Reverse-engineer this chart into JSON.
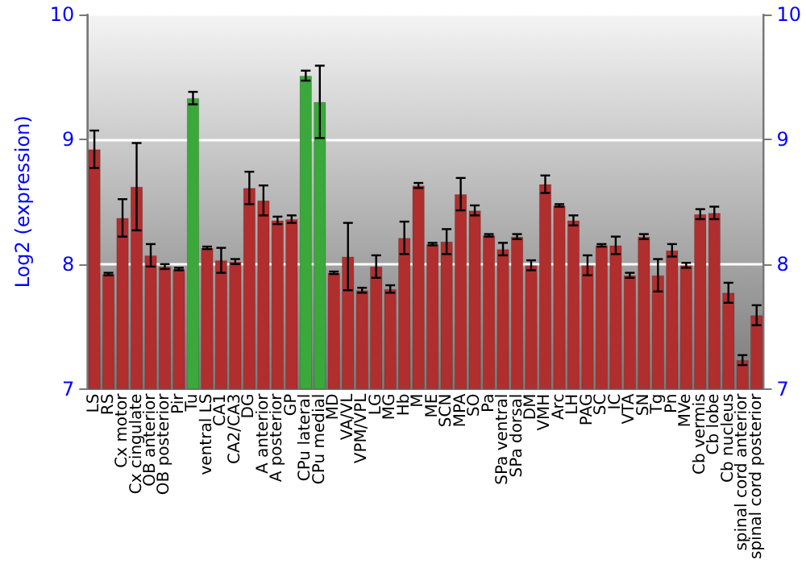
{
  "chart_data": {
    "type": "bar",
    "ylabel": "Log2 (expression)",
    "categories": [
      "LS",
      "RS",
      "Cx motor",
      "Cx cingulate",
      "OB anterior",
      "OB posterior",
      "Pir",
      "Tu",
      "ventral LS",
      "CA1",
      "CA2/CA3",
      "DG",
      "A anterior",
      "A posterior",
      "GP",
      "CPu lateral",
      "CPu medial",
      "MD",
      "VA/VL",
      "VPM/VPL",
      "LG",
      "MG",
      "Hb",
      "M",
      "ME",
      "SCN",
      "MPA",
      "SO",
      "Pa",
      "SPa ventral",
      "SPa dorsal",
      "DM",
      "VMH",
      "Arc",
      "LH",
      "PAG",
      "SC",
      "IC",
      "VTA",
      "SN",
      "Tg",
      "Pn",
      "MVe",
      "Cb vermis",
      "Cb lobe",
      "Cb nucleus",
      "spinal cord anterior",
      "spinal cord posterior"
    ],
    "values": [
      8.92,
      7.92,
      8.37,
      8.62,
      8.07,
      7.98,
      7.96,
      9.33,
      8.13,
      8.03,
      8.02,
      8.61,
      8.51,
      8.35,
      8.36,
      9.51,
      9.3,
      7.93,
      8.06,
      7.79,
      7.98,
      7.8,
      8.21,
      8.63,
      8.16,
      8.18,
      8.56,
      8.43,
      8.23,
      8.12,
      8.22,
      7.99,
      8.64,
      8.47,
      8.35,
      7.99,
      8.15,
      8.15,
      7.91,
      8.22,
      7.91,
      8.11,
      7.99,
      8.4,
      8.41,
      7.77,
      7.23,
      7.59
    ],
    "errors": [
      0.15,
      0.01,
      0.15,
      0.35,
      0.09,
      0.02,
      0.01,
      0.05,
      0.01,
      0.1,
      0.02,
      0.13,
      0.12,
      0.03,
      0.03,
      0.04,
      0.29,
      0.01,
      0.27,
      0.02,
      0.09,
      0.03,
      0.13,
      0.02,
      0.01,
      0.1,
      0.13,
      0.04,
      0.01,
      0.05,
      0.02,
      0.04,
      0.07,
      0.01,
      0.04,
      0.08,
      0.01,
      0.07,
      0.02,
      0.02,
      0.13,
      0.05,
      0.02,
      0.04,
      0.05,
      0.08,
      0.04,
      0.08
    ],
    "colors": [
      "#b02e2e",
      "#b02e2e",
      "#b02e2e",
      "#b02e2e",
      "#b02e2e",
      "#b02e2e",
      "#b02e2e",
      "#3aa83a",
      "#b02e2e",
      "#b02e2e",
      "#b02e2e",
      "#b02e2e",
      "#b02e2e",
      "#b02e2e",
      "#b02e2e",
      "#3aa83a",
      "#3aa83a",
      "#b02e2e",
      "#b02e2e",
      "#b02e2e",
      "#b02e2e",
      "#b02e2e",
      "#b02e2e",
      "#b02e2e",
      "#b02e2e",
      "#b02e2e",
      "#b02e2e",
      "#b02e2e",
      "#b02e2e",
      "#b02e2e",
      "#b02e2e",
      "#b02e2e",
      "#b02e2e",
      "#b02e2e",
      "#b02e2e",
      "#b02e2e",
      "#b02e2e",
      "#b02e2e",
      "#b02e2e",
      "#b02e2e",
      "#b02e2e",
      "#b02e2e",
      "#b02e2e",
      "#b02e2e",
      "#b02e2e",
      "#b02e2e",
      "#b02e2e",
      "#b02e2e"
    ],
    "ylim": [
      7,
      10
    ],
    "yticks": [
      7,
      8,
      9,
      10
    ],
    "y2lim": [
      7,
      10
    ],
    "y2ticks": [
      7,
      8,
      9,
      10
    ],
    "grid": "y"
  }
}
